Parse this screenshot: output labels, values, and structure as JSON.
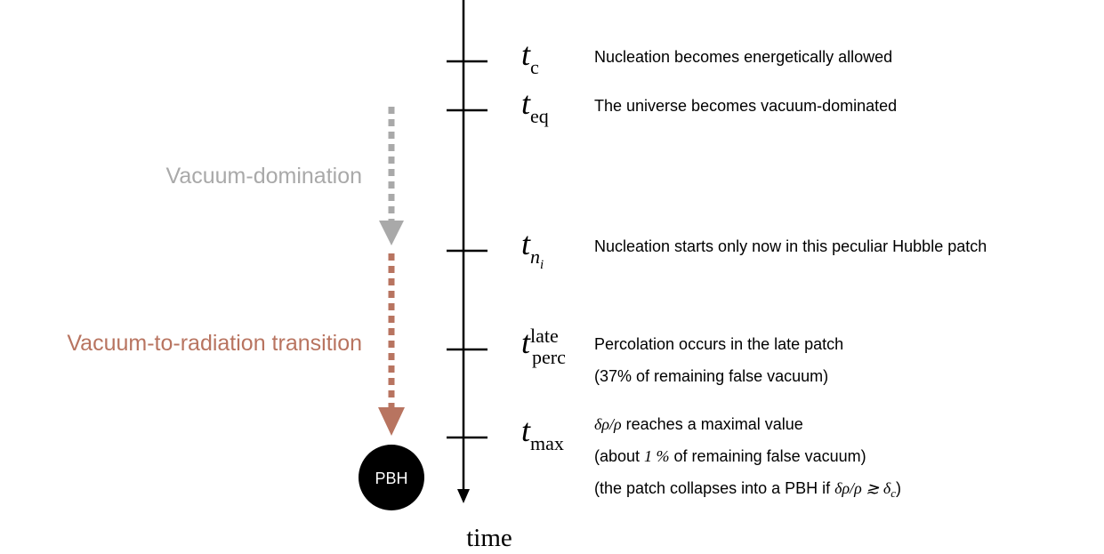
{
  "events": [
    {
      "symbol": "t",
      "sub": "c",
      "lines": [
        [
          {
            "text": "Nucleation becomes energetically allowed"
          }
        ]
      ]
    },
    {
      "symbol": "t",
      "sub": "eq",
      "lines": [
        [
          {
            "text": "The universe becomes vacuum-dominated"
          }
        ]
      ]
    },
    {
      "symbol": "t",
      "sub": "n",
      "subsub": "i",
      "lines": [
        [
          {
            "text": "Nucleation starts only now in this peculiar Hubble patch"
          }
        ]
      ]
    },
    {
      "symbol": "t",
      "sub": "perc",
      "sup": "late",
      "lines": [
        [
          {
            "text": "Percolation occurs in the late patch"
          }
        ],
        [
          {
            "text": "(37% of remaining false vacuum)"
          }
        ]
      ]
    },
    {
      "symbol": "t",
      "sub": "max",
      "lines": [
        [
          {
            "text": "δρ/ρ",
            "italic": true
          },
          {
            "text": " reaches a maximal value"
          }
        ],
        [
          {
            "text": "(about "
          },
          {
            "text": "1 %",
            "italic": true
          },
          {
            "text": " of remaining false vacuum)"
          }
        ],
        [
          {
            "text": "(the patch collapses into a PBH if "
          },
          {
            "text": "δρ/ρ ≳ δ",
            "italic": true
          },
          {
            "text": "c",
            "italic": true,
            "sub": true
          },
          {
            "text": ")"
          }
        ]
      ]
    }
  ],
  "phases": [
    {
      "label": "Vacuum-domination"
    },
    {
      "label": "Vacuum-to-radiation transition"
    }
  ],
  "pbh": "PBH",
  "axis_label": "time"
}
